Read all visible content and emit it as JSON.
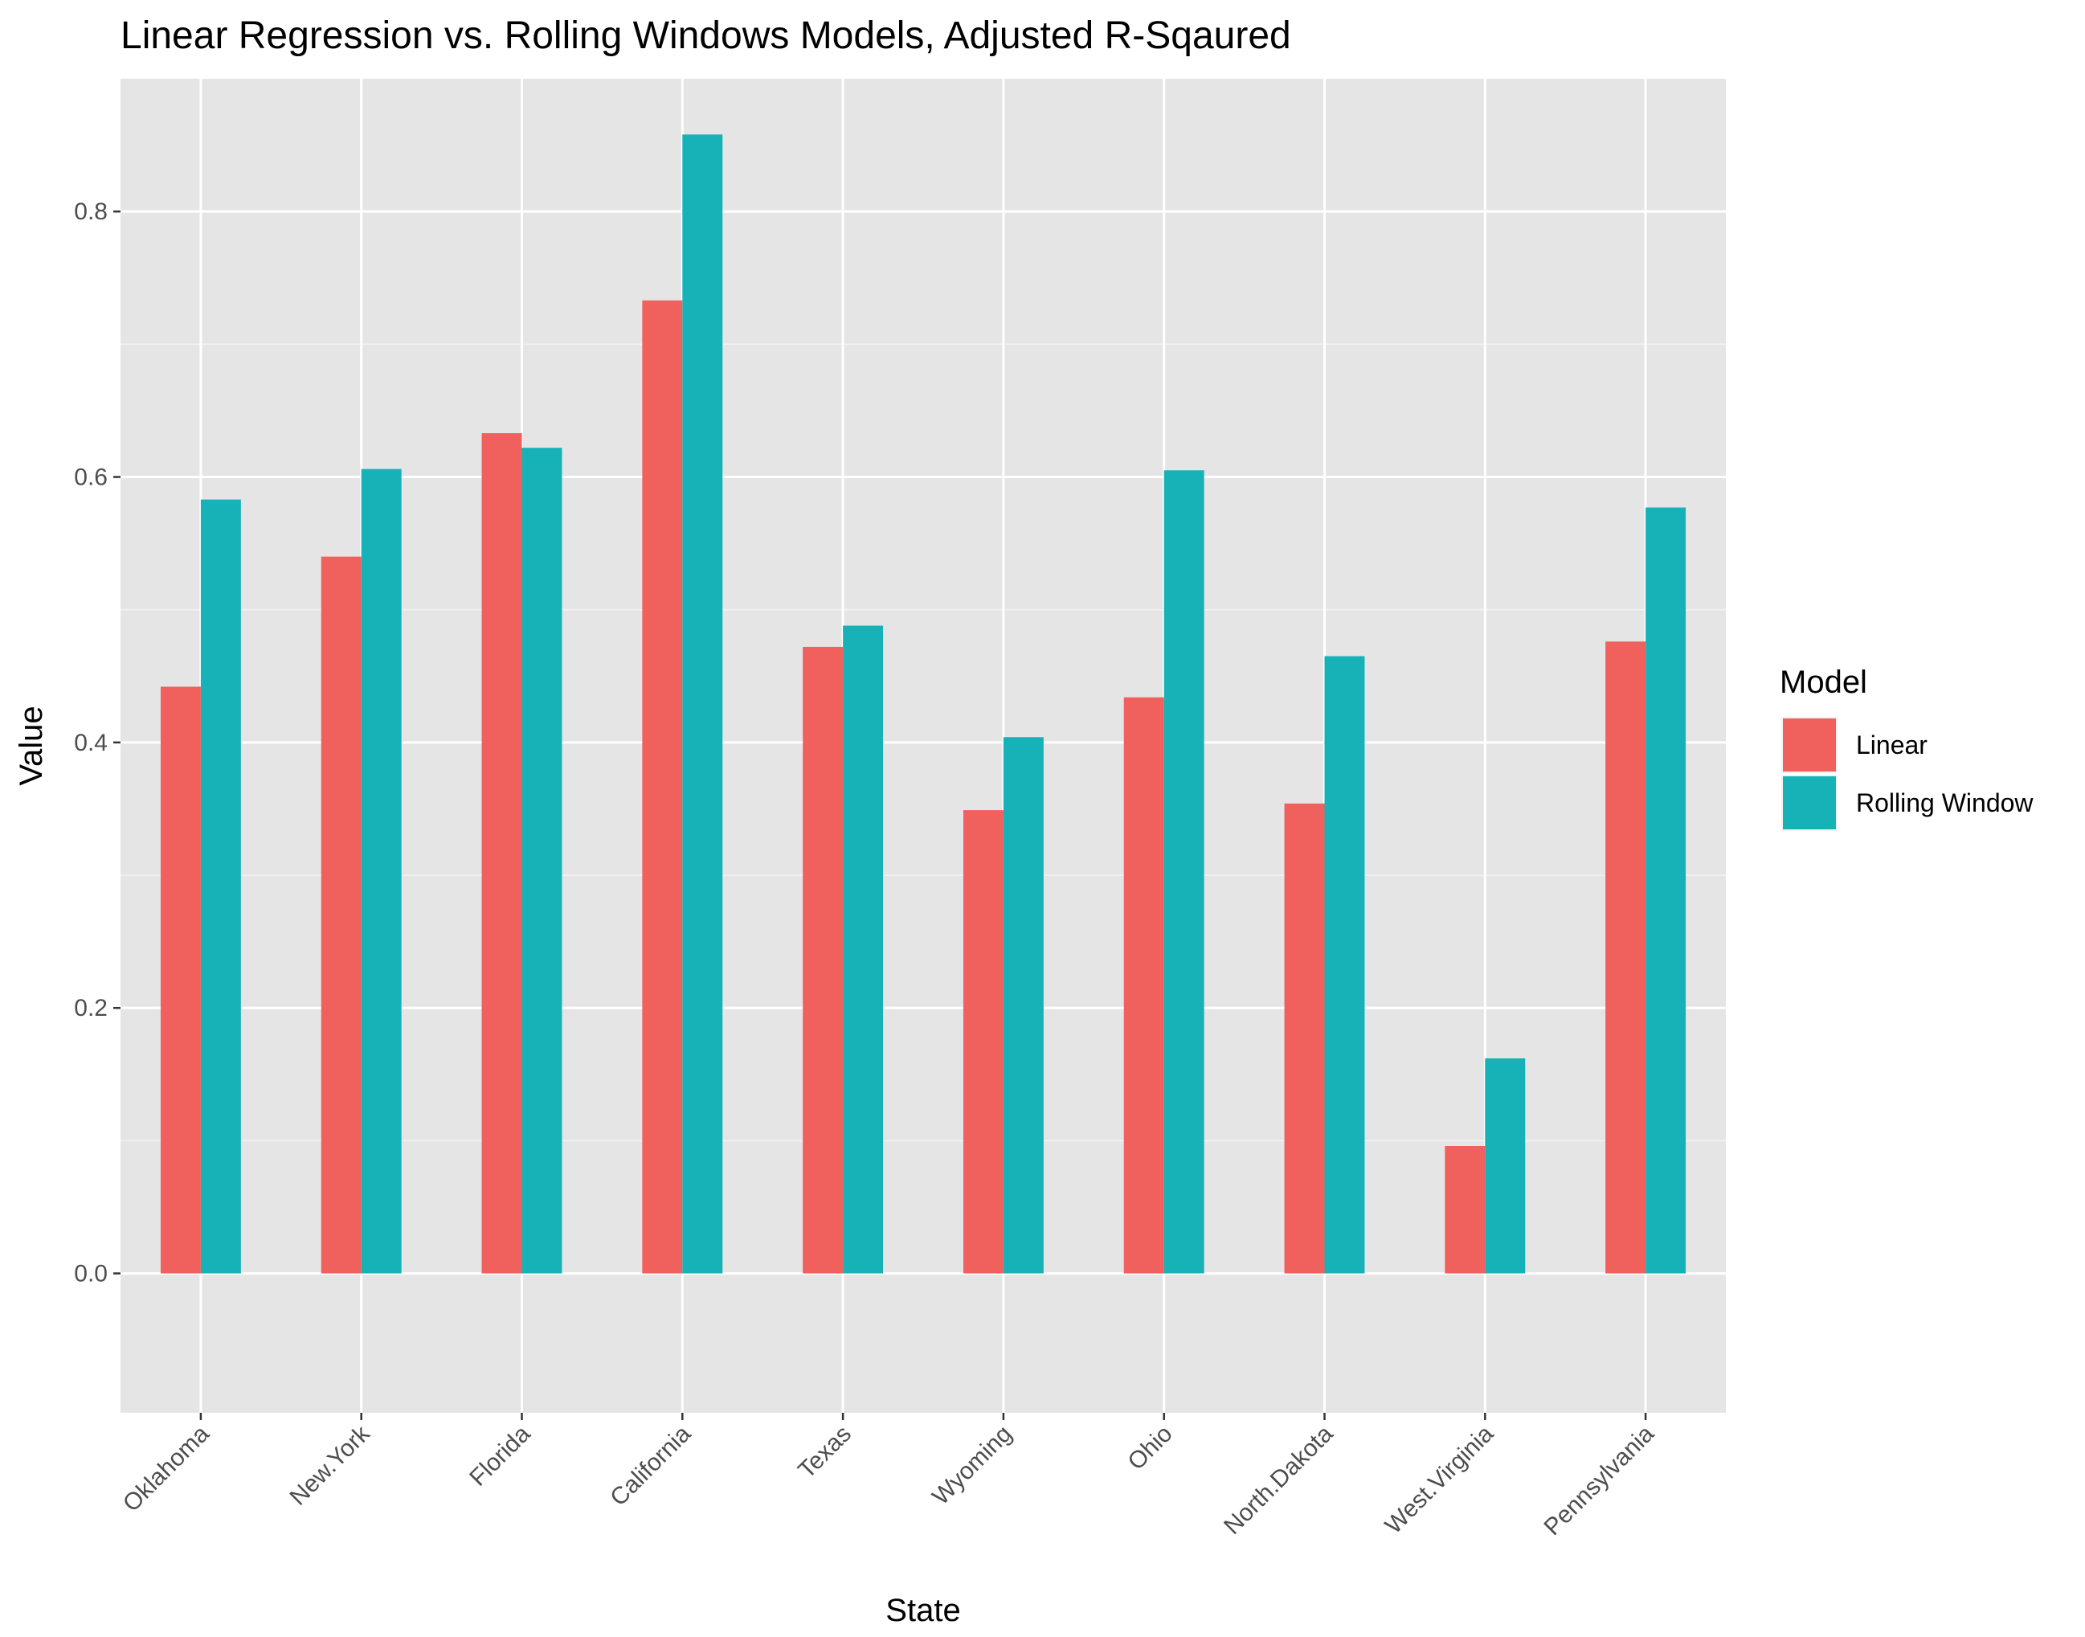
{
  "chart_data": {
    "type": "bar",
    "title": "Linear Regression vs. Rolling Windows Models, Adjusted R-Sqaured",
    "xlabel": "State",
    "ylabel": "Value",
    "categories": [
      "Oklahoma",
      "New.York",
      "Florida",
      "California",
      "Texas",
      "Wyoming",
      "Ohio",
      "North.Dakota",
      "West.Virginia",
      "Pennsylvania"
    ],
    "series": [
      {
        "name": "Linear",
        "color": "#F0605D",
        "values": [
          0.442,
          0.54,
          0.633,
          0.733,
          0.472,
          0.349,
          0.434,
          0.354,
          0.096,
          0.476
        ]
      },
      {
        "name": "Rolling Window",
        "color": "#17B2B7",
        "values": [
          0.583,
          0.606,
          0.622,
          0.858,
          0.488,
          0.404,
          0.605,
          0.465,
          0.162,
          0.577
        ]
      }
    ],
    "ylim": [
      -0.105,
      0.9
    ],
    "yticks": [
      0.0,
      0.2,
      0.4,
      0.6,
      0.8
    ],
    "ytick_labels": [
      "0.0",
      "0.2",
      "0.4",
      "0.6",
      "0.8"
    ],
    "legend": {
      "title": "Model",
      "position": "right"
    },
    "grid": true,
    "panel_background": "#E5E5E5"
  }
}
